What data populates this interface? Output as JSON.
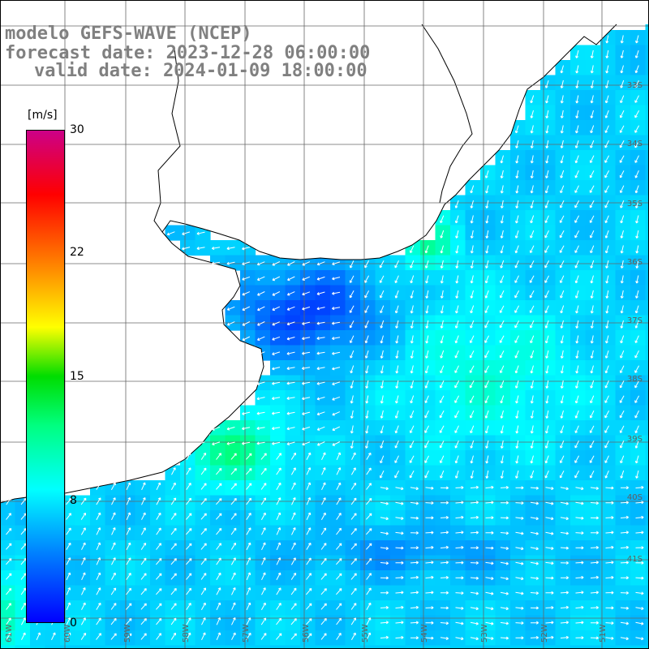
{
  "title": {
    "line1": "modelo GEFS-WAVE (NCEP)",
    "line2": "forecast date: 2023-12-28 06:00:00",
    "line3": "valid date: 2024-01-09 18:00:00"
  },
  "colorbar": {
    "unit": "[m/s]",
    "ticks": [
      "30",
      "22",
      "15",
      "8",
      "0"
    ],
    "tick_values": [
      30,
      22,
      15,
      8,
      0
    ]
  },
  "right_labels": [
    "33S",
    "34S",
    "35S",
    "36S",
    "37S",
    "38S",
    "39S",
    "40S",
    "41S"
  ],
  "bottom_labels": [
    "61W",
    "60W",
    "59W",
    "58W",
    "57W",
    "56W",
    "55W",
    "54W",
    "53W",
    "52W",
    "51W"
  ],
  "colors": {
    "land": "#ffffff",
    "coast": "#000000",
    "grid": "#666666",
    "arrow": "#ffffff"
  }
}
